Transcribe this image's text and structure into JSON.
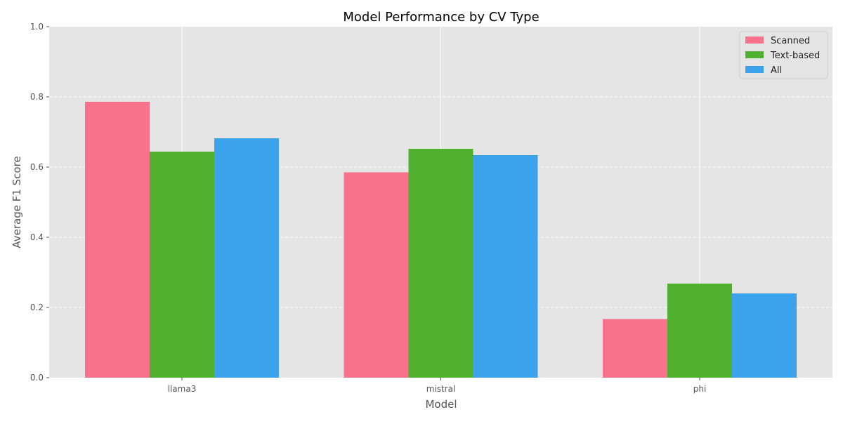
{
  "chart_data": {
    "type": "bar",
    "title": "Model Performance by CV Type",
    "xlabel": "Model",
    "ylabel": "Average F1 Score",
    "categories": [
      "llama3",
      "mistral",
      "phi"
    ],
    "series": [
      {
        "name": "Scanned",
        "color": "#f7728a",
        "values": [
          0.786,
          0.585,
          0.167
        ]
      },
      {
        "name": "Text-based",
        "color": "#50b131",
        "values": [
          0.644,
          0.652,
          0.268
        ]
      },
      {
        "name": "All",
        "color": "#3ba3ec",
        "values": [
          0.682,
          0.634,
          0.24
        ]
      }
    ],
    "ylim": [
      0,
      1.0
    ],
    "yticks": [
      "0.0",
      "0.2",
      "0.4",
      "0.6",
      "0.8",
      "1.0"
    ],
    "grid": true,
    "legend_position": "top-right",
    "background": "#e5e5e5"
  }
}
